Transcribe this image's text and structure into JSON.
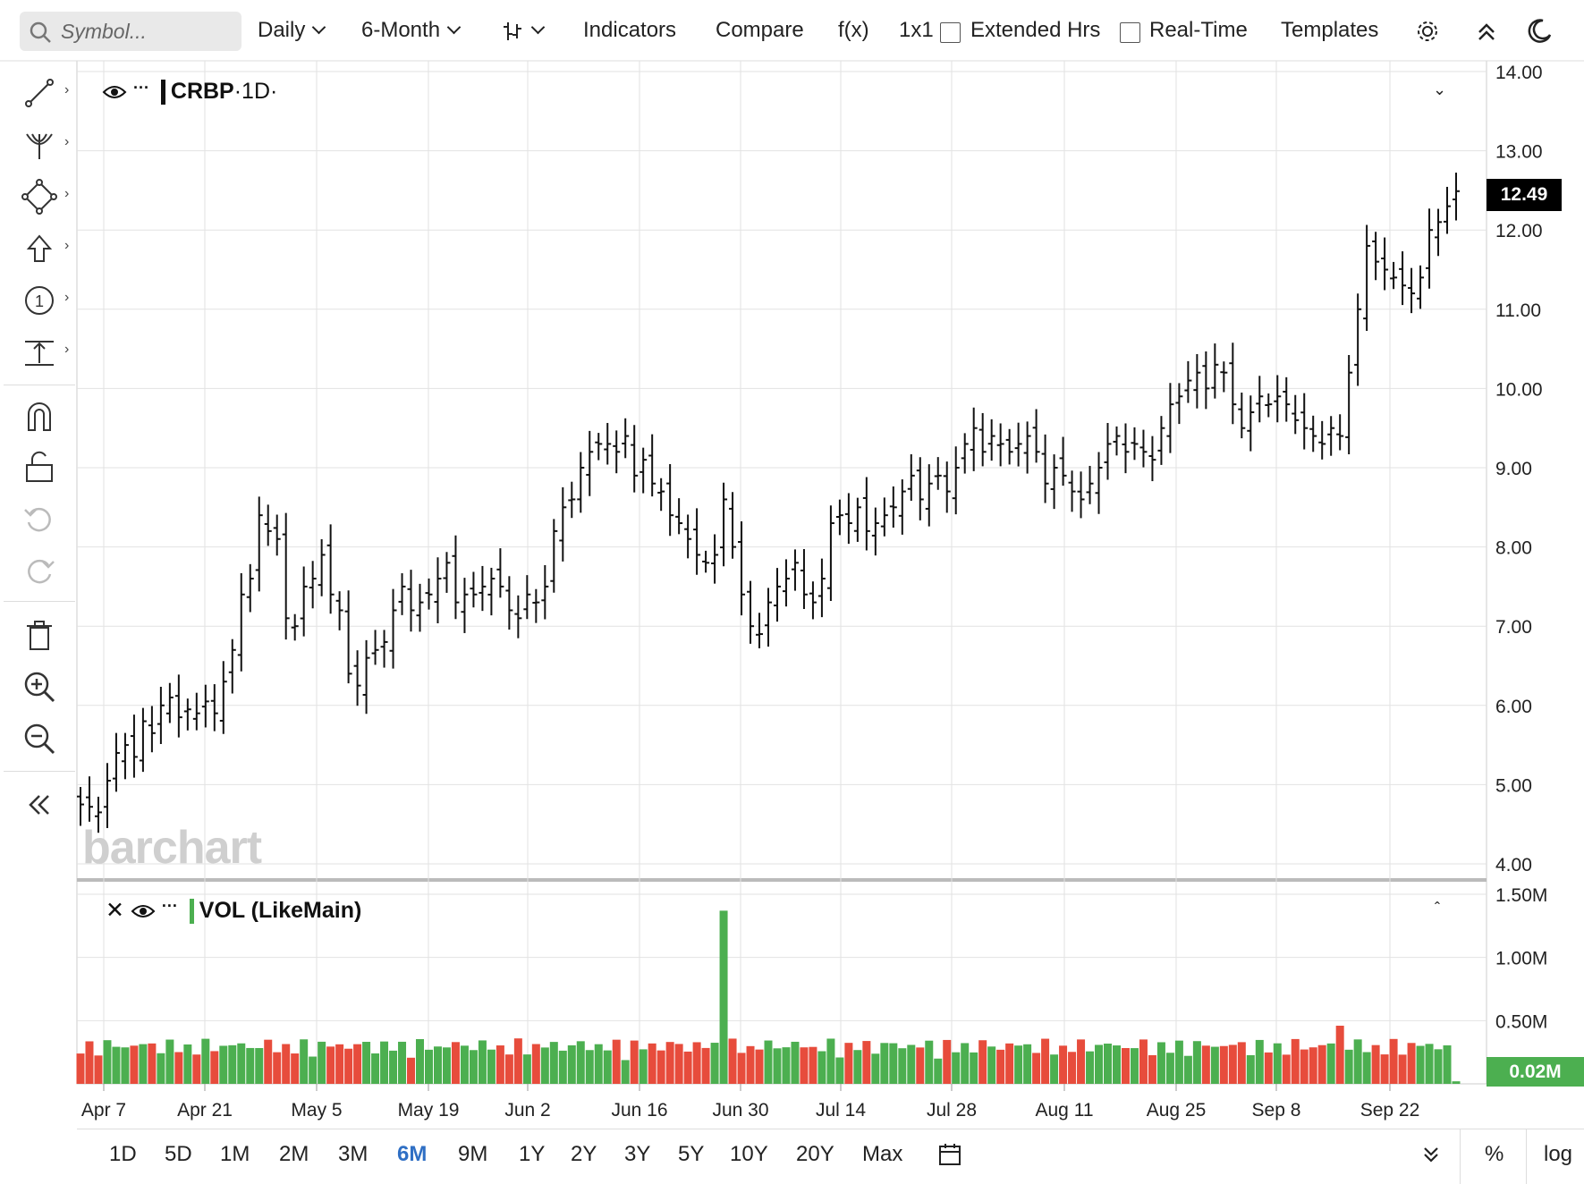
{
  "toolbar": {
    "search_placeholder": "Symbol...",
    "interval": "Daily",
    "period": "6-Month",
    "indicators": "Indicators",
    "compare": "Compare",
    "fx": "f(x)",
    "layout": "1x1",
    "extended_hrs": "Extended Hrs",
    "real_time": "Real-Time",
    "templates": "Templates"
  },
  "legend": {
    "symbol": "CRBP",
    "interval": "·1D·",
    "volume_study": "VOL (LikeMain)"
  },
  "watermark": "barchart",
  "price_badge": "12.49",
  "volume_badge": "0.02M",
  "bottom_bar": {
    "ranges": [
      "1D",
      "5D",
      "1M",
      "2M",
      "3M",
      "6M",
      "9M",
      "1Y",
      "2Y",
      "3Y",
      "5Y",
      "10Y",
      "20Y",
      "Max"
    ],
    "active_range": "6M",
    "percent": "%",
    "log": "log"
  },
  "colors": {
    "up": "#4caf50",
    "down": "#e74c3c",
    "accent": "#2f6fc4"
  },
  "chart_data": {
    "type": "ohlc",
    "symbol": "CRBP",
    "price_axis": {
      "ylim": [
        4.0,
        14.0
      ],
      "ticks": [
        "4.00",
        "5.00",
        "6.00",
        "7.00",
        "8.00",
        "9.00",
        "10.00",
        "11.00",
        "12.00",
        "13.00",
        "14.00"
      ]
    },
    "volume_axis": {
      "ylim": [
        0,
        1.5
      ],
      "unit": "M",
      "ticks": [
        "0.50M",
        "1.00M",
        "1.50M"
      ]
    },
    "x_tick_labels": [
      "Apr 7",
      "Apr 21",
      "May 5",
      "May 19",
      "Jun 2",
      "Jun 16",
      "Jun 30",
      "Jul 14",
      "Jul 28",
      "Aug 11",
      "Aug 25",
      "Sep 8",
      "Sep 22"
    ],
    "last_price": 12.49,
    "last_volume_m": 0.02,
    "closes": [
      4.75,
      4.72,
      4.65,
      5.05,
      5.4,
      5.5,
      5.35,
      5.8,
      5.65,
      6.0,
      6.1,
      5.85,
      5.95,
      5.9,
      6.05,
      5.9,
      6.3,
      6.7,
      7.4,
      7.6,
      8.4,
      8.2,
      8.1,
      7.1,
      7.0,
      7.5,
      7.6,
      7.9,
      7.4,
      7.2,
      6.4,
      6.25,
      6.6,
      6.7,
      6.8,
      7.2,
      7.5,
      7.2,
      7.3,
      7.4,
      7.6,
      7.8,
      7.3,
      7.4,
      7.4,
      7.5,
      7.6,
      7.5,
      7.2,
      7.1,
      7.4,
      7.3,
      7.5,
      8.2,
      8.5,
      8.6,
      9.0,
      9.2,
      9.3,
      9.3,
      9.2,
      9.4,
      8.9,
      9.1,
      8.8,
      8.7,
      8.4,
      8.3,
      8.1,
      7.9,
      7.8,
      7.9,
      8.6,
      8.0,
      7.4,
      7.0,
      6.9,
      7.3,
      7.5,
      7.6,
      7.8,
      7.4,
      7.3,
      7.6,
      8.3,
      8.4,
      8.3,
      8.5,
      8.2,
      8.3,
      8.4,
      8.5,
      8.7,
      8.9,
      8.6,
      8.8,
      8.9,
      8.7,
      9.0,
      9.3,
      9.5,
      9.2,
      9.4,
      9.3,
      9.2,
      9.3,
      9.4,
      9.2,
      8.8,
      9.0,
      8.9,
      8.7,
      8.6,
      8.8,
      9.0,
      9.3,
      9.4,
      9.2,
      9.3,
      9.2,
      9.1,
      9.5,
      9.8,
      9.9,
      10.1,
      10.2,
      10.0,
      10.3,
      10.2,
      9.8,
      9.5,
      9.7,
      9.9,
      9.8,
      9.9,
      9.8,
      9.6,
      9.5,
      9.4,
      9.3,
      9.5,
      9.4,
      10.2,
      11.0,
      11.8,
      11.6,
      11.5,
      11.4,
      11.3,
      11.2,
      11.4,
      12.0,
      12.1,
      12.3,
      12.49
    ]
  }
}
